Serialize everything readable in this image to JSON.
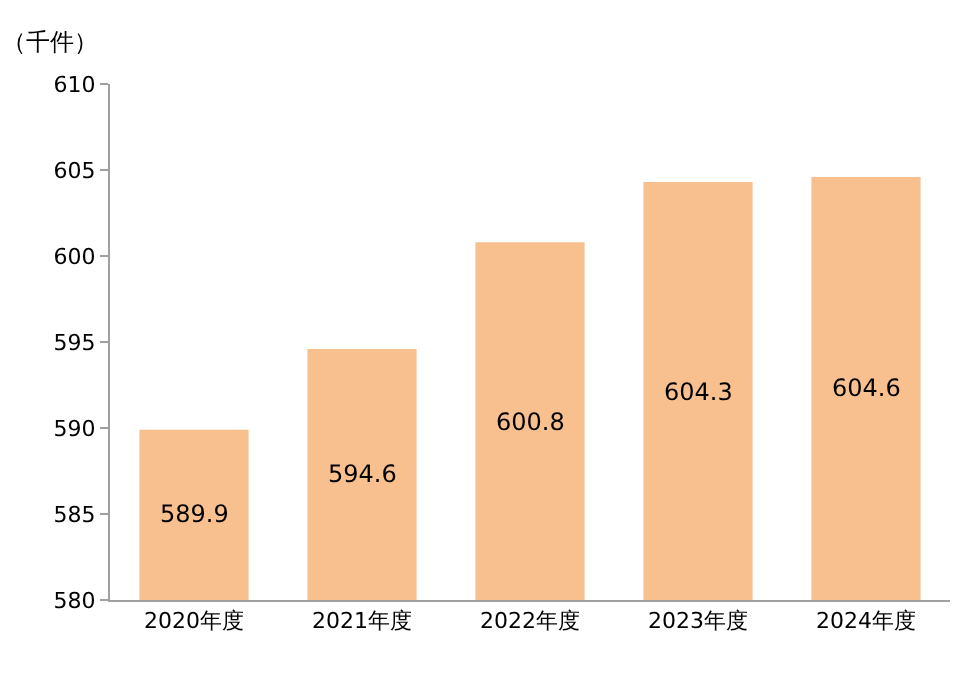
{
  "chart_data": {
    "type": "bar",
    "ylabel": "（千件）",
    "categories": [
      "2020年度",
      "2021年度",
      "2022年度",
      "2023年度",
      "2024年度"
    ],
    "values": [
      589.9,
      594.6,
      600.8,
      604.3,
      604.6
    ],
    "color": "#f9c08f",
    "ylim": [
      580,
      610
    ],
    "yticks": [
      580,
      585,
      590,
      595,
      600,
      605,
      610
    ],
    "legend": false,
    "data_labels": true
  }
}
